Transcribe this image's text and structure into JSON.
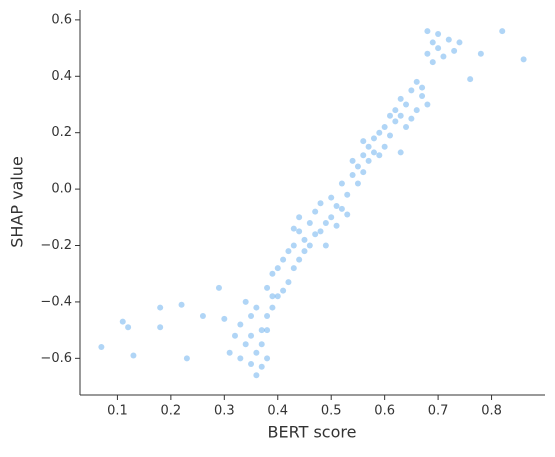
{
  "chart_data": {
    "type": "scatter",
    "xlabel": "BERT score",
    "ylabel": "SHAP value",
    "color": "#1e88e5",
    "opacity": 0.35,
    "xlim": [
      0.03,
      0.9
    ],
    "ylim": [
      -0.73,
      0.635
    ],
    "xticks": [
      0.1,
      0.2,
      0.3,
      0.4,
      0.5,
      0.6,
      0.7,
      0.8
    ],
    "yticks": [
      {
        "value": -0.6,
        "label": "−0.6"
      },
      {
        "value": -0.4,
        "label": "−0.4"
      },
      {
        "value": -0.2,
        "label": "−0.2"
      },
      {
        "value": 0,
        "label": "0.0"
      },
      0.2,
      0.4,
      0.6
    ],
    "grid": false,
    "x": [
      0.33,
      0.34,
      0.35,
      0.36,
      0.37,
      0.38,
      0.36,
      0.34,
      0.35,
      0.37,
      0.38,
      0.32,
      0.31,
      0.3,
      0.36,
      0.39,
      0.33,
      0.35,
      0.37,
      0.38,
      0.38,
      0.39,
      0.4,
      0.41,
      0.4,
      0.42,
      0.39,
      0.41,
      0.42,
      0.43,
      0.43,
      0.44,
      0.45,
      0.46,
      0.44,
      0.45,
      0.47,
      0.46,
      0.44,
      0.43,
      0.47,
      0.48,
      0.49,
      0.5,
      0.51,
      0.48,
      0.5,
      0.49,
      0.51,
      0.52,
      0.53,
      0.52,
      0.53,
      0.54,
      0.55,
      0.56,
      0.57,
      0.55,
      0.56,
      0.57,
      0.58,
      0.54,
      0.56,
      0.58,
      0.59,
      0.6,
      0.61,
      0.6,
      0.62,
      0.59,
      0.61,
      0.63,
      0.62,
      0.63,
      0.64,
      0.65,
      0.66,
      0.67,
      0.64,
      0.66,
      0.68,
      0.65,
      0.67,
      0.63,
      0.68,
      0.69,
      0.7,
      0.71,
      0.72,
      0.69,
      0.7,
      0.73,
      0.74,
      0.68,
      0.07,
      0.11,
      0.12,
      0.13,
      0.18,
      0.18,
      0.22,
      0.23,
      0.26,
      0.29,
      0.86,
      0.82,
      0.78,
      0.76
    ],
    "y": [
      -0.48,
      -0.55,
      -0.62,
      -0.58,
      -0.5,
      -0.45,
      -0.42,
      -0.4,
      -0.52,
      -0.63,
      -0.6,
      -0.52,
      -0.58,
      -0.46,
      -0.66,
      -0.38,
      -0.6,
      -0.45,
      -0.55,
      -0.5,
      -0.35,
      -0.3,
      -0.28,
      -0.25,
      -0.38,
      -0.33,
      -0.42,
      -0.36,
      -0.22,
      -0.28,
      -0.2,
      -0.15,
      -0.18,
      -0.12,
      -0.25,
      -0.22,
      -0.16,
      -0.2,
      -0.1,
      -0.14,
      -0.08,
      -0.05,
      -0.12,
      -0.1,
      -0.06,
      -0.15,
      -0.03,
      -0.2,
      -0.13,
      -0.07,
      -0.02,
      0.02,
      -0.09,
      0.05,
      0.08,
      0.12,
      0.15,
      0.02,
      0.06,
      0.1,
      0.13,
      0.1,
      0.17,
      0.18,
      0.2,
      0.22,
      0.19,
      0.15,
      0.24,
      0.12,
      0.26,
      0.13,
      0.28,
      0.32,
      0.3,
      0.35,
      0.28,
      0.33,
      0.22,
      0.38,
      0.3,
      0.25,
      0.36,
      0.26,
      0.48,
      0.52,
      0.5,
      0.47,
      0.53,
      0.45,
      0.55,
      0.49,
      0.52,
      0.56,
      -0.56,
      -0.47,
      -0.49,
      -0.59,
      -0.42,
      -0.49,
      -0.41,
      -0.6,
      -0.45,
      -0.35,
      0.46,
      0.56,
      0.48,
      0.39
    ]
  }
}
